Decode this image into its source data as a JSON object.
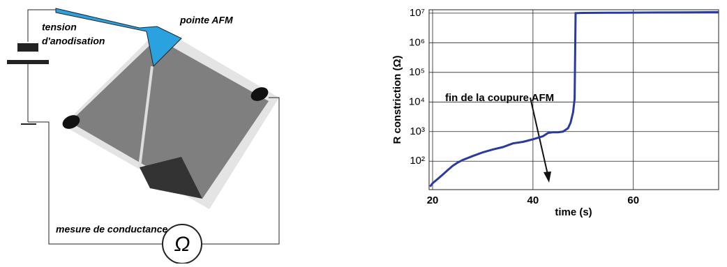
{
  "diagram": {
    "labels": {
      "voltage_1": "tension",
      "voltage_2": "d'anodisation",
      "tip": "pointe AFM",
      "measure": "mesure de conductance",
      "ohm": "Ω"
    }
  },
  "chart_data": {
    "type": "line",
    "x_label": "time (s)",
    "y_label": "R constriction (Ω)",
    "annotation": "fin de la coupure AFM",
    "x": [
      19.5,
      20,
      21,
      22,
      23,
      24,
      25,
      26,
      28,
      30,
      32,
      34,
      36,
      38,
      40,
      42,
      43,
      44,
      45,
      46,
      47,
      47.5,
      48,
      48.3,
      48.5,
      50,
      55,
      60,
      65,
      70,
      77
    ],
    "series": [
      {
        "name": "R",
        "color": "#2b3a9e",
        "values": [
          14,
          18,
          25,
          35,
          50,
          70,
          90,
          110,
          150,
          200,
          250,
          300,
          400,
          450,
          550,
          700,
          900,
          950,
          950,
          1000,
          1300,
          2000,
          4500,
          13000,
          10000000,
          10200000,
          10300000,
          10400000,
          10500000,
          10600000,
          10800000
        ]
      }
    ],
    "xlim": [
      19.3,
      77
    ],
    "xticks": [
      20,
      40,
      60
    ],
    "ylim": [
      11,
      13000000
    ],
    "log_y": true,
    "grid": true,
    "yticks": [
      {
        "value": 100,
        "label": "10²"
      },
      {
        "value": 1000,
        "label": "10³"
      },
      {
        "value": 10000,
        "label": "10⁴"
      },
      {
        "value": 100000,
        "label": "10⁵"
      },
      {
        "value": 1000000,
        "label": "10⁶"
      },
      {
        "value": 10000000,
        "label": "10⁷"
      }
    ]
  }
}
